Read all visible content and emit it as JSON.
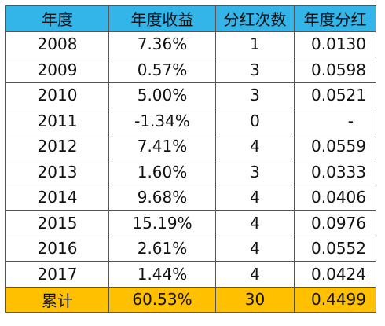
{
  "table": {
    "headers": [
      "年度",
      "年度收益",
      "分红次数",
      "年度分红"
    ],
    "rows": [
      {
        "year": "2008",
        "return": "7.36%",
        "count": "1",
        "dividend": "0.0130"
      },
      {
        "year": "2009",
        "return": "0.57%",
        "count": "3",
        "dividend": "0.0598"
      },
      {
        "year": "2010",
        "return": "5.00%",
        "count": "3",
        "dividend": "0.0521"
      },
      {
        "year": "2011",
        "return": "-1.34%",
        "count": "0",
        "dividend": "-"
      },
      {
        "year": "2012",
        "return": "7.41%",
        "count": "4",
        "dividend": "0.0559"
      },
      {
        "year": "2013",
        "return": "1.60%",
        "count": "3",
        "dividend": "0.0333"
      },
      {
        "year": "2014",
        "return": "9.68%",
        "count": "4",
        "dividend": "0.0406"
      },
      {
        "year": "2015",
        "return": "15.19%",
        "count": "4",
        "dividend": "0.0976"
      },
      {
        "year": "2016",
        "return": "2.61%",
        "count": "4",
        "dividend": "0.0552"
      },
      {
        "year": "2017",
        "return": "1.44%",
        "count": "4",
        "dividend": "0.0424"
      }
    ],
    "total": {
      "label": "累计",
      "return": "60.53%",
      "count": "30",
      "dividend": "0.4499"
    }
  },
  "colors": {
    "header_bg": "#33b5ea",
    "total_bg": "#ffc000",
    "border": "#555555"
  }
}
